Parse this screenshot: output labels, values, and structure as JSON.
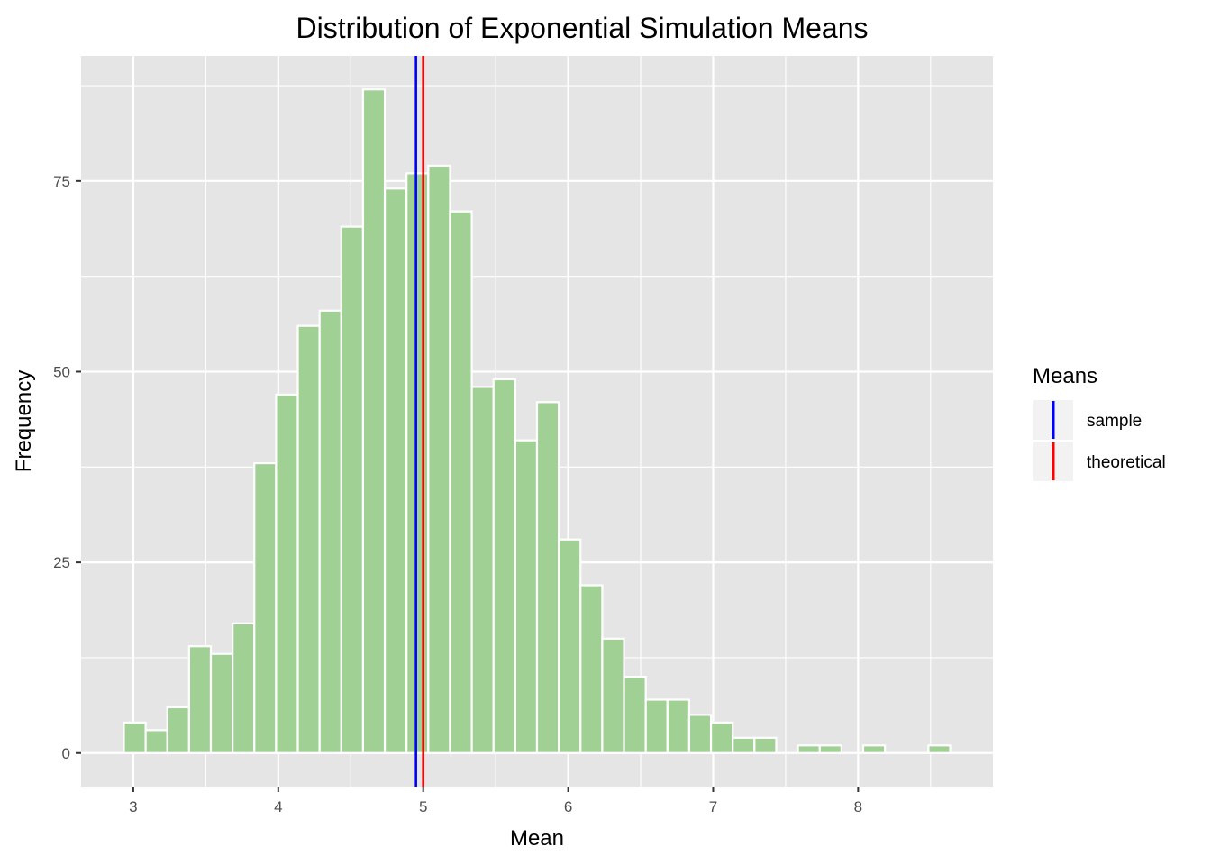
{
  "chart_data": {
    "type": "bar",
    "title": "Distribution of Exponential Simulation Means",
    "xlabel": "Mean",
    "ylabel": "Frequency",
    "xlim": [
      2.64,
      8.93
    ],
    "ylim": [
      -4.4,
      91.4
    ],
    "x_ticks": [
      3,
      4,
      5,
      6,
      7,
      8
    ],
    "y_ticks": [
      0,
      25,
      50,
      75
    ],
    "grid": true,
    "bin_width": 0.15,
    "bins": [
      {
        "x": 3.01,
        "count": 4
      },
      {
        "x": 3.16,
        "count": 3
      },
      {
        "x": 3.31,
        "count": 6
      },
      {
        "x": 3.46,
        "count": 14
      },
      {
        "x": 3.61,
        "count": 13
      },
      {
        "x": 3.76,
        "count": 17
      },
      {
        "x": 3.91,
        "count": 38
      },
      {
        "x": 4.06,
        "count": 47
      },
      {
        "x": 4.21,
        "count": 56
      },
      {
        "x": 4.36,
        "count": 58
      },
      {
        "x": 4.51,
        "count": 69
      },
      {
        "x": 4.66,
        "count": 87
      },
      {
        "x": 4.81,
        "count": 74
      },
      {
        "x": 4.96,
        "count": 76
      },
      {
        "x": 5.11,
        "count": 77
      },
      {
        "x": 5.26,
        "count": 71
      },
      {
        "x": 5.41,
        "count": 48
      },
      {
        "x": 5.56,
        "count": 49
      },
      {
        "x": 5.71,
        "count": 41
      },
      {
        "x": 5.86,
        "count": 46
      },
      {
        "x": 6.01,
        "count": 28
      },
      {
        "x": 6.16,
        "count": 22
      },
      {
        "x": 6.31,
        "count": 15
      },
      {
        "x": 6.46,
        "count": 10
      },
      {
        "x": 6.61,
        "count": 7
      },
      {
        "x": 6.76,
        "count": 7
      },
      {
        "x": 6.91,
        "count": 5
      },
      {
        "x": 7.06,
        "count": 4
      },
      {
        "x": 7.21,
        "count": 2
      },
      {
        "x": 7.36,
        "count": 2
      },
      {
        "x": 7.51,
        "count": 0
      },
      {
        "x": 7.66,
        "count": 1
      },
      {
        "x": 7.81,
        "count": 1
      },
      {
        "x": 7.96,
        "count": 0
      },
      {
        "x": 8.11,
        "count": 1
      },
      {
        "x": 8.26,
        "count": 0
      },
      {
        "x": 8.41,
        "count": 0
      },
      {
        "x": 8.56,
        "count": 1
      }
    ],
    "bar_fill": "#a0d094",
    "bar_stroke": "#ffffff",
    "panel_background": "#e5e5e5",
    "vlines": [
      {
        "name": "sample",
        "x": 4.95,
        "color": "#0000ff"
      },
      {
        "name": "theoretical",
        "x": 5.0,
        "color": "#ff0000"
      }
    ],
    "legend": {
      "title": "Means",
      "position": "right",
      "entries": [
        {
          "label": "sample",
          "color": "#0000ff"
        },
        {
          "label": "theoretical",
          "color": "#ff0000"
        }
      ]
    }
  }
}
